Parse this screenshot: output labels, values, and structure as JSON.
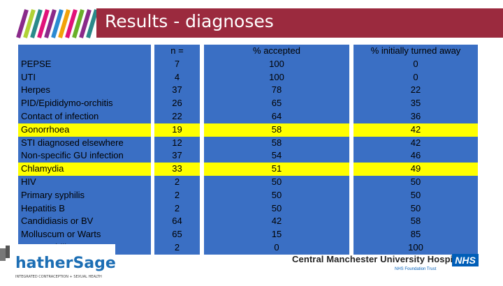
{
  "slide": {
    "title": "Results - diagnoses"
  },
  "table": {
    "headers": {
      "condition": "",
      "n": "n =",
      "accepted": "% accepted",
      "turned_away": "% initially turned away"
    },
    "rows": [
      {
        "condition": "PEPSE",
        "n": "7",
        "accepted": "100",
        "turned_away": "0",
        "highlight": false
      },
      {
        "condition": "UTI",
        "n": "4",
        "accepted": "100",
        "turned_away": "0",
        "highlight": false
      },
      {
        "condition": "Herpes",
        "n": "37",
        "accepted": "78",
        "turned_away": "22",
        "highlight": false
      },
      {
        "condition": "PID/Epididymo-orchitis",
        "n": "26",
        "accepted": "65",
        "turned_away": "35",
        "highlight": false
      },
      {
        "condition": "Contact of infection",
        "n": "22",
        "accepted": "64",
        "turned_away": "36",
        "highlight": false
      },
      {
        "condition": "Gonorrhoea",
        "n": "19",
        "accepted": "58",
        "turned_away": "42",
        "highlight": true
      },
      {
        "condition": "STI diagnosed elsewhere",
        "n": "12",
        "accepted": "58",
        "turned_away": "42",
        "highlight": false
      },
      {
        "condition": "Non-specific GU infection",
        "n": "37",
        "accepted": "54",
        "turned_away": "46",
        "highlight": false
      },
      {
        "condition": "Chlamydia",
        "n": "33",
        "accepted": "51",
        "turned_away": "49",
        "highlight": true
      },
      {
        "condition": "HIV",
        "n": "2",
        "accepted": "50",
        "turned_away": "50",
        "highlight": false
      },
      {
        "condition": "Primary syphilis",
        "n": "2",
        "accepted": "50",
        "turned_away": "50",
        "highlight": false
      },
      {
        "condition": "Hepatitis B",
        "n": "2",
        "accepted": "50",
        "turned_away": "50",
        "highlight": false
      },
      {
        "condition": "Candidiasis or BV",
        "n": "64",
        "accepted": "42",
        "turned_away": "58",
        "highlight": false
      },
      {
        "condition": "Molluscum or Warts",
        "n": "65",
        "accepted": "15",
        "turned_away": "85",
        "highlight": false
      },
      {
        "condition": "Late syphilis",
        "n": "2",
        "accepted": "0",
        "turned_away": "100",
        "highlight": false
      }
    ]
  },
  "footer": {
    "logo_text": "hathersage",
    "logo_tagline": "INTEGRATED CONTRACEPTION + SEXUAL HEALTH",
    "hospital_name": "Central Manchester University Hospitals",
    "nhs_badge": "NHS",
    "nhs_trust": "NHS Foundation Trust"
  },
  "colors": {
    "title_bar": "#9b2a3e",
    "table_blue": "#3a6fc4",
    "highlight_yellow": "#ffff00",
    "nhs_blue": "#005eb8"
  }
}
